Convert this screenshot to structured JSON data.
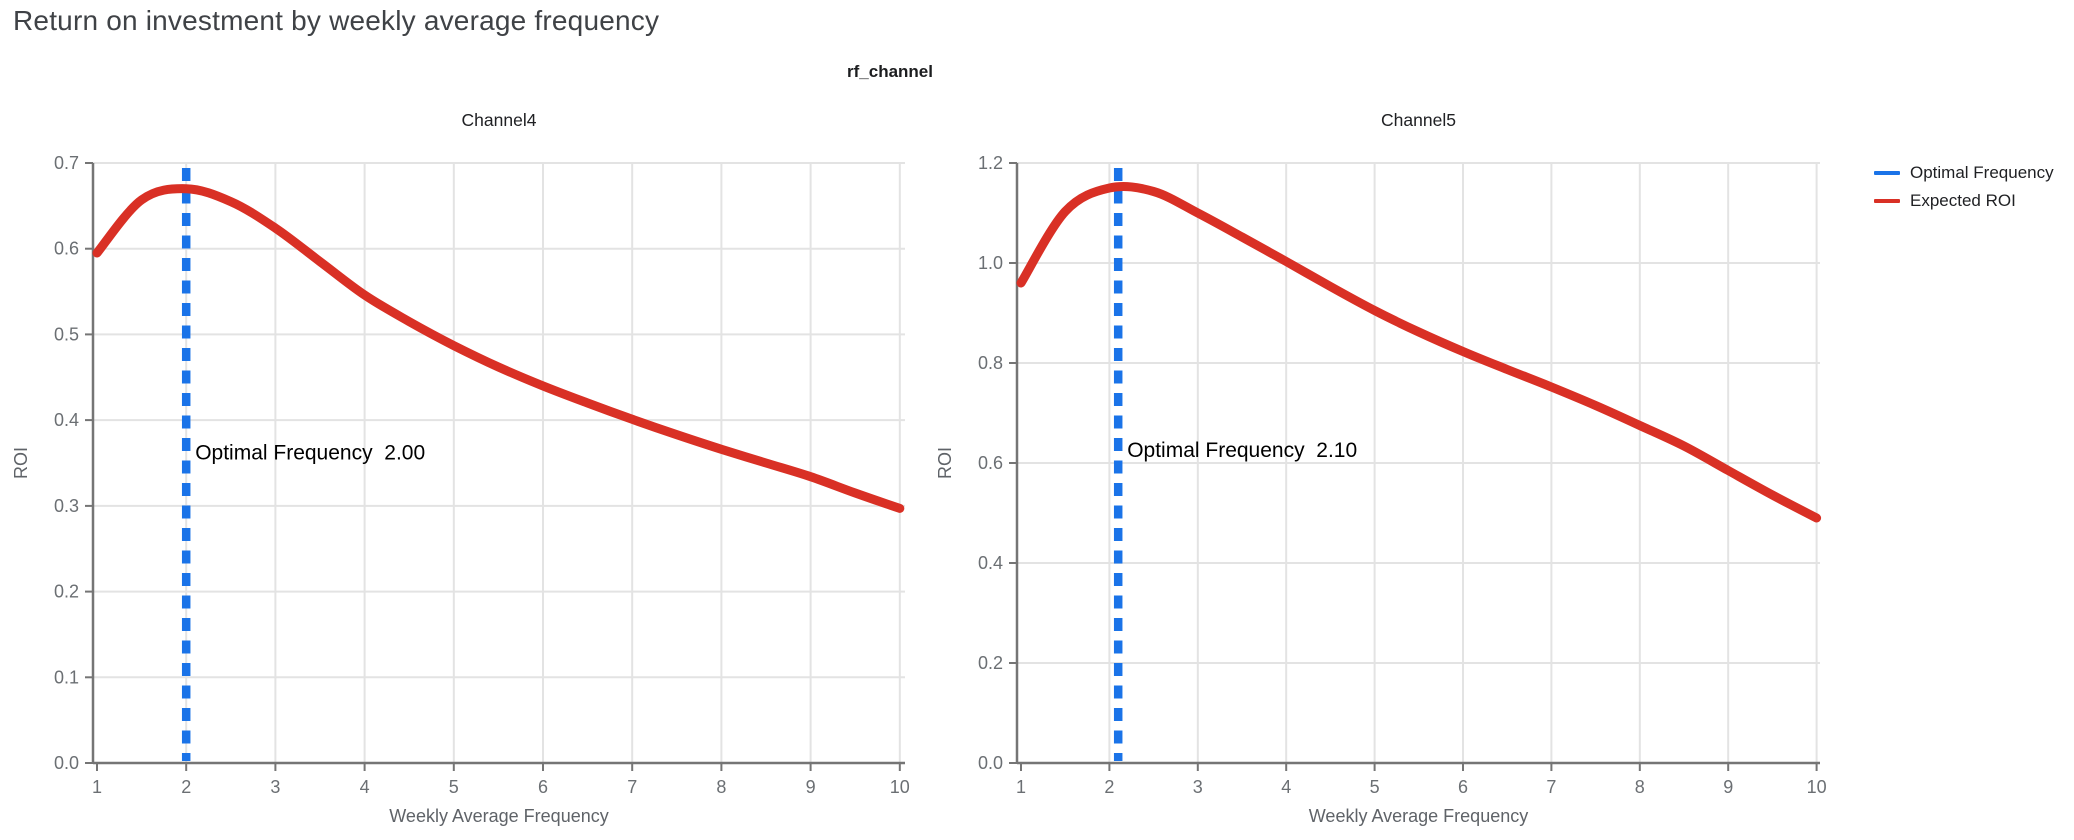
{
  "page": {
    "title": "Return on investment by weekly average frequency"
  },
  "figure": {
    "strip_title": "rf_channel",
    "colors": {
      "optimal_frequency_line": "#1a73e8",
      "expected_roi_line": "#d93025",
      "gridline": "#e3e3e3",
      "axis_line": "#757575",
      "tick_label": "#6b6f73",
      "axis_title": "#5f6368",
      "chart_title": "#202124",
      "annotation_text": "#000000",
      "page_title": "#3f4246"
    },
    "legend": {
      "items": [
        {
          "label": "Optimal Frequency",
          "color": "#1a73e8"
        },
        {
          "label": "Expected ROI",
          "color": "#d93025"
        }
      ]
    }
  },
  "chart_data": [
    {
      "type": "line",
      "title": "Channel4",
      "xlabel": "Weekly Average Frequency",
      "ylabel": "ROI",
      "xlim": [
        1,
        10
      ],
      "ylim": [
        0,
        0.7
      ],
      "grid": true,
      "xticks": [
        1,
        2,
        3,
        4,
        5,
        6,
        7,
        8,
        9,
        10
      ],
      "xtick_labels": [
        "1",
        "2",
        "3",
        "4",
        "5",
        "6",
        "7",
        "8",
        "9",
        "10"
      ],
      "yticks": [
        0,
        0.1,
        0.2,
        0.3,
        0.4,
        0.5,
        0.6,
        0.7
      ],
      "ytick_labels": [
        "0.0",
        "0.1",
        "0.2",
        "0.3",
        "0.4",
        "0.5",
        "0.6",
        "0.7"
      ],
      "optimal_frequency": 2.0,
      "annotation": "Optimal Frequency  2.00",
      "annotation_y": 0.362,
      "series": [
        {
          "name": "Expected ROI",
          "x": [
            1,
            1.5,
            2,
            2.5,
            3,
            3.5,
            4,
            4.5,
            5,
            5.5,
            6,
            6.5,
            7,
            7.5,
            8,
            8.5,
            9,
            9.5,
            10
          ],
          "y": [
            0.595,
            0.657,
            0.67,
            0.655,
            0.624,
            0.585,
            0.546,
            0.515,
            0.487,
            0.462,
            0.44,
            0.42,
            0.401,
            0.383,
            0.366,
            0.35,
            0.334,
            0.315,
            0.297
          ]
        }
      ]
    },
    {
      "type": "line",
      "title": "Channel5",
      "xlabel": "Weekly Average Frequency",
      "ylabel": "ROI",
      "xlim": [
        1,
        10
      ],
      "ylim": [
        0,
        1.2
      ],
      "grid": true,
      "xticks": [
        1,
        2,
        3,
        4,
        5,
        6,
        7,
        8,
        9,
        10
      ],
      "xtick_labels": [
        "1",
        "2",
        "3",
        "4",
        "5",
        "6",
        "7",
        "8",
        "9",
        "10"
      ],
      "yticks": [
        0,
        0.2,
        0.4,
        0.6,
        0.8,
        1.0,
        1.2
      ],
      "ytick_labels": [
        "0.0",
        "0.2",
        "0.4",
        "0.6",
        "0.8",
        "1.0",
        "1.2"
      ],
      "optimal_frequency": 2.1,
      "annotation": "Optimal Frequency  2.10",
      "annotation_y": 0.626,
      "series": [
        {
          "name": "Expected ROI",
          "x": [
            1,
            1.5,
            2,
            2.5,
            3,
            3.5,
            4,
            4.5,
            5,
            5.5,
            6,
            6.5,
            7,
            7.5,
            8,
            8.5,
            9,
            9.5,
            10
          ],
          "y": [
            0.96,
            1.103,
            1.15,
            1.143,
            1.1,
            1.052,
            1.003,
            0.953,
            0.905,
            0.862,
            0.823,
            0.787,
            0.752,
            0.715,
            0.675,
            0.634,
            0.585,
            0.536,
            0.49
          ]
        }
      ]
    }
  ]
}
